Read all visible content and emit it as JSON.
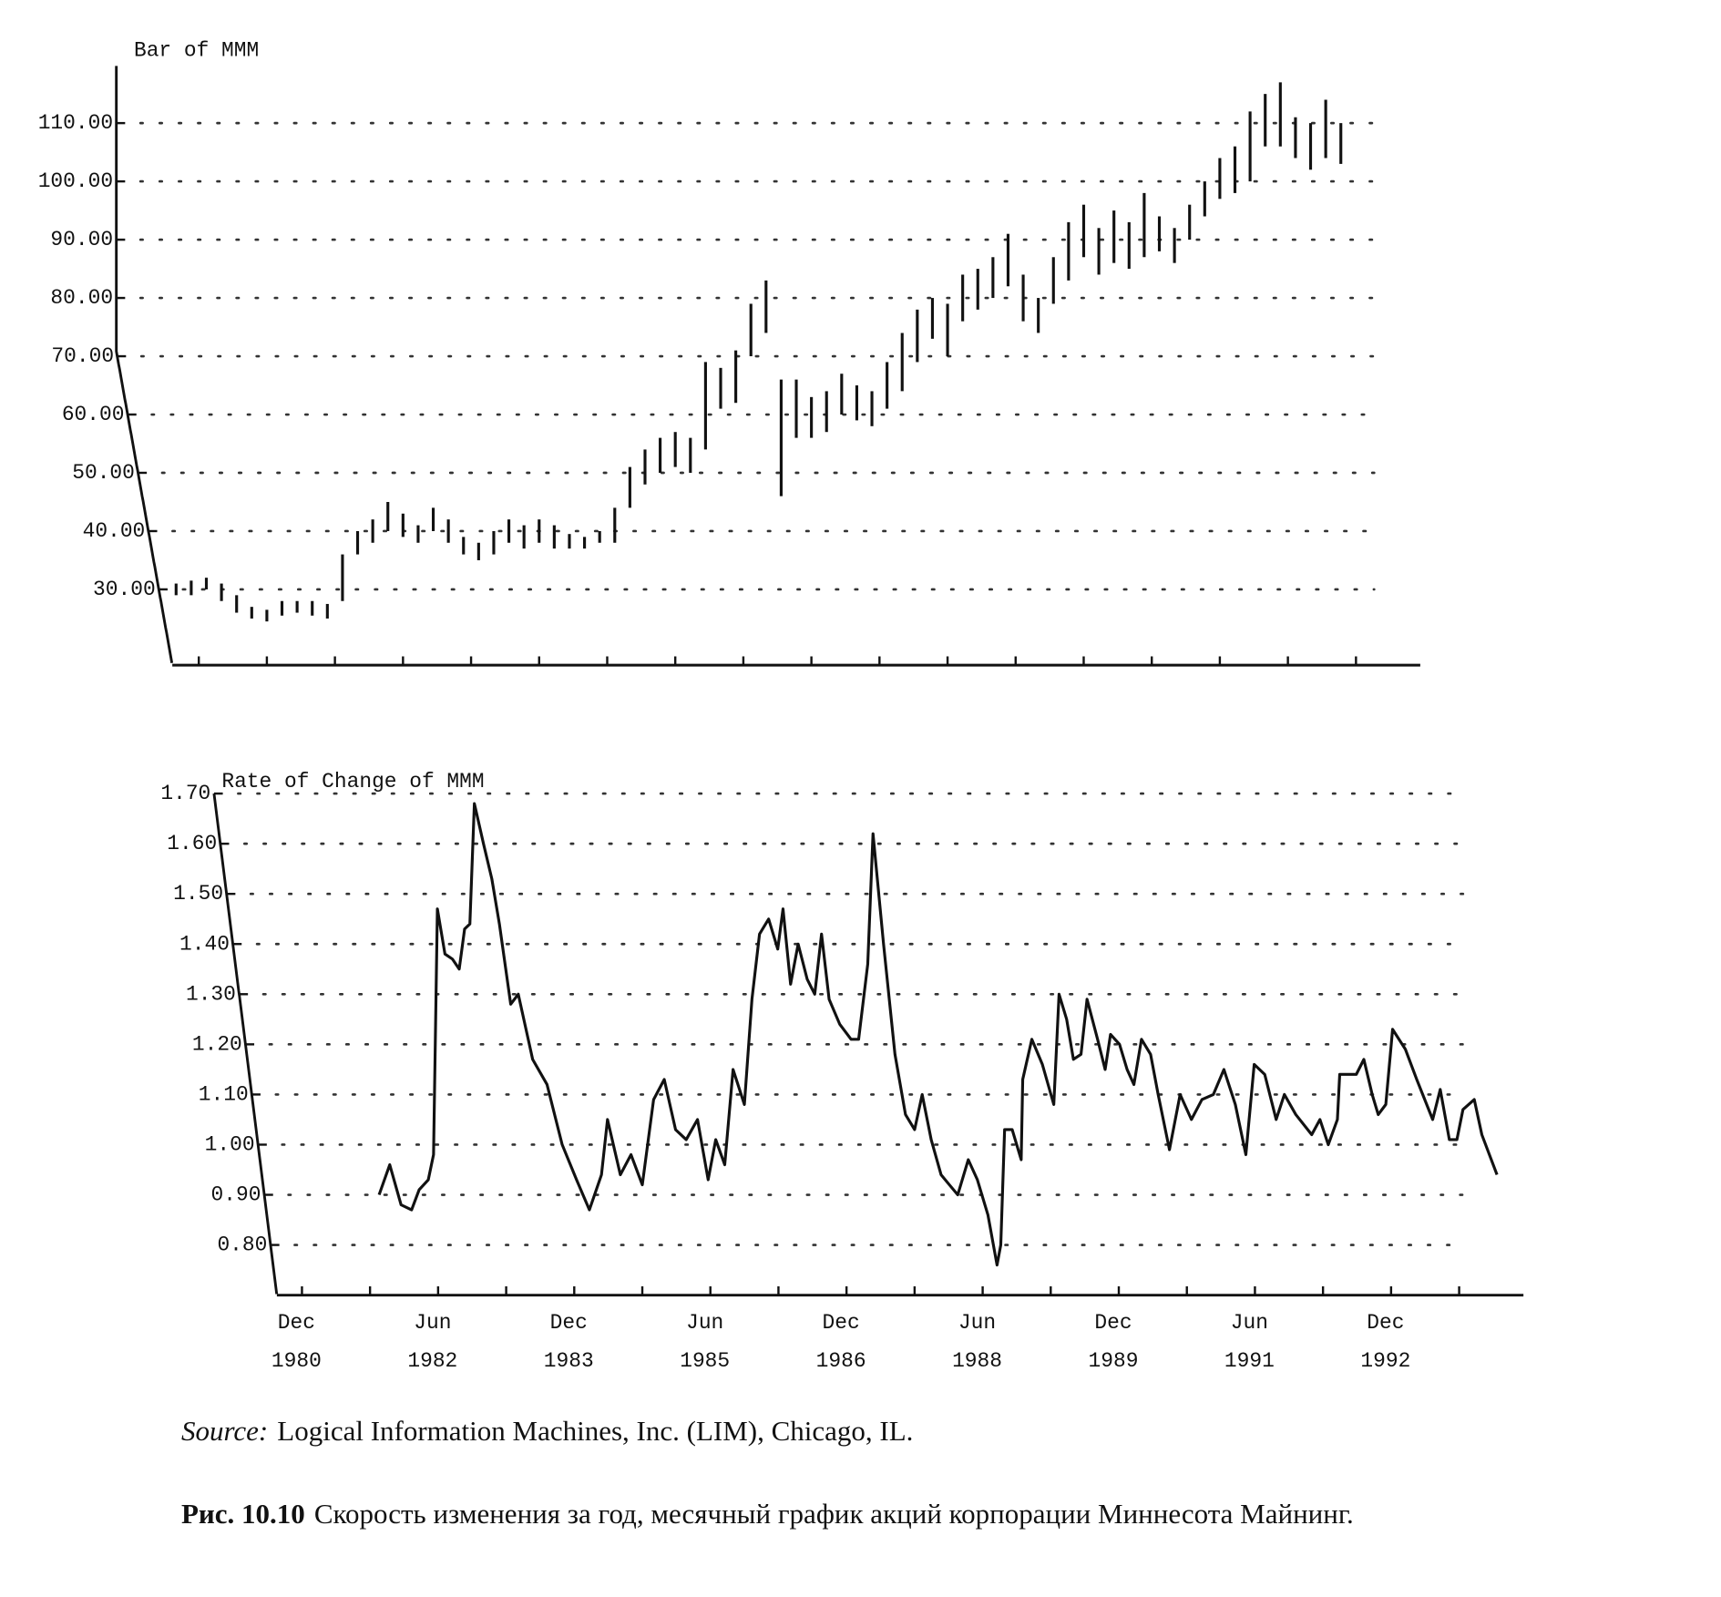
{
  "chart_data": [
    {
      "type": "ohlc",
      "title": "Bar of MMM",
      "color": "#111111",
      "grid": true,
      "x": [
        -3,
        -1,
        1,
        3,
        5,
        7,
        9,
        11,
        13,
        15,
        17,
        19,
        21,
        23,
        25,
        27,
        29,
        31,
        33,
        35,
        37,
        39,
        41,
        43,
        45,
        47,
        49,
        51,
        53,
        55,
        57,
        59,
        61,
        63,
        65,
        67,
        69,
        71,
        73,
        75,
        77,
        79,
        81,
        83,
        85,
        87,
        89,
        91,
        93,
        95,
        97,
        99,
        101,
        103,
        105,
        107,
        109,
        111,
        113,
        115,
        117,
        119,
        121,
        123,
        125,
        127,
        129,
        131,
        133,
        135,
        137,
        139,
        141,
        143,
        145,
        147,
        149,
        151
      ],
      "high": [
        31,
        31.5,
        32,
        31,
        29,
        27,
        26.5,
        28,
        28,
        28,
        27.5,
        36,
        40,
        42,
        45,
        43,
        41,
        44,
        42,
        39,
        38,
        40,
        42,
        41,
        42,
        41,
        39.5,
        39,
        40,
        44,
        51,
        54,
        56,
        57,
        56,
        69,
        68,
        71,
        79,
        83,
        66,
        66,
        63,
        64,
        67,
        65,
        64,
        69,
        74,
        78,
        80,
        79,
        84,
        85,
        87,
        91,
        84,
        80,
        87,
        93,
        96,
        92,
        95,
        93,
        98,
        94,
        92,
        96,
        100,
        104,
        106,
        112,
        115,
        117,
        111,
        110,
        114,
        110
      ],
      "low": [
        29,
        29,
        30,
        28,
        26,
        25,
        24.5,
        25.5,
        26,
        25.5,
        25,
        28,
        36,
        38,
        40,
        39,
        38,
        40,
        38,
        36,
        35,
        36,
        38,
        37,
        38,
        37,
        37,
        37,
        38,
        38,
        44,
        48,
        50,
        51,
        50,
        54,
        61,
        62,
        70,
        74,
        46,
        56,
        56,
        57,
        60,
        59,
        58,
        61,
        64,
        69,
        73,
        70,
        76,
        78,
        80,
        82,
        76,
        74,
        79,
        83,
        87,
        84,
        86,
        85,
        87,
        88,
        86,
        90,
        94,
        97,
        98,
        100,
        106,
        106,
        104,
        102,
        104,
        103
      ],
      "xlim": [
        -3.5,
        161.5
      ],
      "ylim": [
        17,
        120
      ],
      "yticks": [
        {
          "value": 30,
          "label": "30.00"
        },
        {
          "value": 40,
          "label": "40.00"
        },
        {
          "value": 50,
          "label": "50.00"
        },
        {
          "value": 60,
          "label": "60.00"
        },
        {
          "value": 70,
          "label": "70.00"
        },
        {
          "value": 80,
          "label": "80.00"
        },
        {
          "value": 90,
          "label": "90.00"
        },
        {
          "value": 100,
          "label": "100.00"
        },
        {
          "value": 110,
          "label": "110.00"
        }
      ],
      "xminorticks": [
        0,
        9,
        18,
        27,
        36,
        45,
        54,
        63,
        72,
        81,
        90,
        99,
        108,
        117,
        126,
        135,
        144,
        153
      ]
    },
    {
      "type": "line",
      "title": "Rate of Change of MMM",
      "color": "#111111",
      "grid": true,
      "x": [
        10.2,
        11.6,
        13.1,
        14.5,
        15.5,
        16.7,
        17.4,
        17.9,
        18.9,
        19.9,
        20.8,
        21.5,
        22.2,
        22.8,
        24,
        25.1,
        26.1,
        27.6,
        28.6,
        30.5,
        32.4,
        34.4,
        36.3,
        38,
        39.6,
        40.4,
        42.1,
        43.5,
        45,
        46.5,
        47.9,
        49.4,
        50.8,
        52.3,
        53.7,
        54.7,
        55.9,
        57,
        58.5,
        59.5,
        60.5,
        61.7,
        62.9,
        63.6,
        64.6,
        65.6,
        66.8,
        67.8,
        68.7,
        69.7,
        71.1,
        72.6,
        73.6,
        74.8,
        75.5,
        76.9,
        78.4,
        79.8,
        81,
        82,
        83.2,
        84.5,
        85.6,
        86.7,
        88.1,
        89.3,
        90.7,
        91.9,
        92.4,
        92.9,
        93.9,
        95.1,
        95.3,
        96.5,
        97.9,
        99.4,
        100.1,
        101.1,
        102,
        103,
        103.8,
        105.2,
        106.2,
        106.9,
        108.1,
        109.1,
        110,
        111,
        112.2,
        113.2,
        114.7,
        116.1,
        117.6,
        119,
        120.5,
        121.9,
        123.4,
        124.8,
        125.9,
        127.3,
        128.8,
        129.9,
        131.4,
        133.5,
        134.6,
        135.7,
        136.9,
        137.2,
        139.4,
        140.4,
        141.5,
        142.3,
        143.3,
        144.2,
        145.9,
        147.4,
        149.5,
        150.5,
        151.7,
        152.7,
        153.5,
        155,
        156,
        158
      ],
      "values": [
        0.9,
        0.96,
        0.88,
        0.87,
        0.91,
        0.93,
        0.98,
        1.47,
        1.38,
        1.37,
        1.35,
        1.43,
        1.44,
        1.68,
        1.6,
        1.53,
        1.44,
        1.28,
        1.3,
        1.17,
        1.12,
        1.0,
        0.93,
        0.87,
        0.94,
        1.05,
        0.94,
        0.98,
        0.92,
        1.09,
        1.13,
        1.03,
        1.01,
        1.05,
        0.93,
        1.01,
        0.96,
        1.15,
        1.08,
        1.29,
        1.42,
        1.45,
        1.39,
        1.47,
        1.32,
        1.4,
        1.33,
        1.3,
        1.42,
        1.29,
        1.24,
        1.21,
        1.21,
        1.36,
        1.62,
        1.4,
        1.18,
        1.06,
        1.03,
        1.1,
        1.01,
        0.94,
        0.92,
        0.9,
        0.97,
        0.93,
        0.86,
        0.76,
        0.8,
        1.03,
        1.03,
        0.97,
        1.13,
        1.21,
        1.16,
        1.08,
        1.3,
        1.25,
        1.17,
        1.18,
        1.29,
        1.21,
        1.15,
        1.22,
        1.2,
        1.15,
        1.12,
        1.21,
        1.18,
        1.1,
        0.99,
        1.1,
        1.05,
        1.09,
        1.1,
        1.15,
        1.08,
        0.98,
        1.16,
        1.14,
        1.05,
        1.1,
        1.06,
        1.02,
        1.05,
        1.0,
        1.05,
        1.14,
        1.14,
        1.17,
        1.1,
        1.06,
        1.08,
        1.23,
        1.19,
        1.13,
        1.05,
        1.11,
        1.01,
        1.01,
        1.07,
        1.09,
        1.02,
        0.94
      ],
      "xlim": [
        -3.5,
        161.5
      ],
      "ylim": [
        0.7,
        1.7
      ],
      "yticks": [
        {
          "value": 0.8,
          "label": "0.80"
        },
        {
          "value": 0.9,
          "label": "0.90"
        },
        {
          "value": 1.0,
          "label": "1.00"
        },
        {
          "value": 1.1,
          "label": "1.10"
        },
        {
          "value": 1.2,
          "label": "1.20"
        },
        {
          "value": 1.3,
          "label": "1.30"
        },
        {
          "value": 1.4,
          "label": "1.40"
        },
        {
          "value": 1.5,
          "label": "1.50"
        },
        {
          "value": 1.6,
          "label": "1.60"
        },
        {
          "value": 1.7,
          "label": "1.70"
        }
      ],
      "xticks": [
        {
          "value": 0,
          "label": "Dec\n1980"
        },
        {
          "value": 18,
          "label": "Jun\n1982"
        },
        {
          "value": 36,
          "label": "Dec\n1983"
        },
        {
          "value": 54,
          "label": "Jun\n1985"
        },
        {
          "value": 72,
          "label": "Dec\n1986"
        },
        {
          "value": 90,
          "label": "Jun\n1988"
        },
        {
          "value": 108,
          "label": "Dec\n1989"
        },
        {
          "value": 126,
          "label": "Jun\n1991"
        },
        {
          "value": 144,
          "label": "Dec\n1992"
        }
      ],
      "xminorticks": [
        9,
        27,
        45,
        63,
        81,
        99,
        117,
        135,
        153
      ]
    }
  ],
  "source": {
    "label": "Source:",
    "text": "Logical Information Machines, Inc. (LIM), Chicago, IL."
  },
  "caption": {
    "label": "Рис. 10.10",
    "text": "Скорость изменения за год, месячный график акций корпорации Миннесота Майнинг."
  }
}
